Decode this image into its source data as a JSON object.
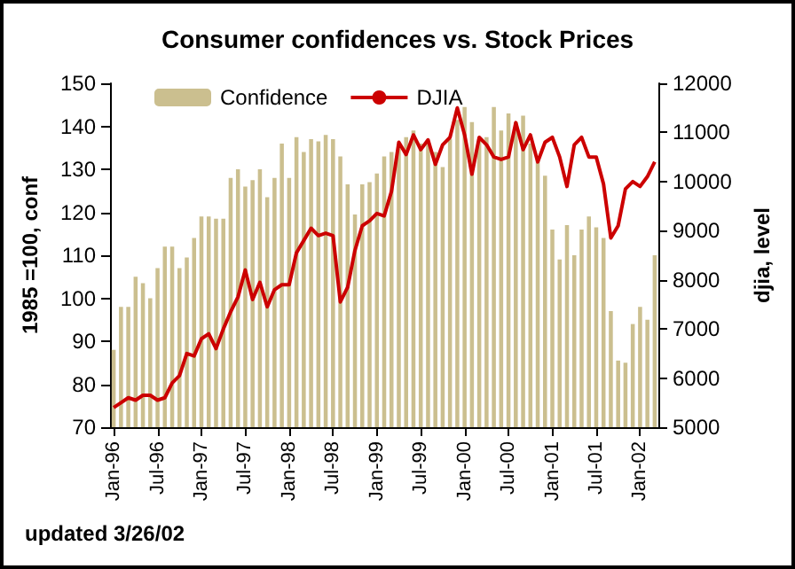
{
  "chart_data": {
    "type": "bar",
    "title": "Consumer confidences vs. Stock Prices",
    "ylabel": "1985 =100, conf",
    "y2label": "djia, level",
    "annotations": [
      "updated 3/26/02"
    ],
    "categories": [
      "Jan-96",
      null,
      null,
      null,
      null,
      null,
      "Jul-96",
      null,
      null,
      null,
      null,
      null,
      "Jan-97",
      null,
      null,
      null,
      null,
      null,
      "Jul-97",
      null,
      null,
      null,
      null,
      null,
      "Jan-98",
      null,
      null,
      null,
      null,
      null,
      "Jul-98",
      null,
      null,
      null,
      null,
      null,
      "Jan-99",
      null,
      null,
      null,
      null,
      null,
      "Jul-99",
      null,
      null,
      null,
      null,
      null,
      "Jan-00",
      null,
      null,
      null,
      null,
      null,
      "Jul-00",
      null,
      null,
      null,
      null,
      null,
      "Jan-01",
      null,
      null,
      null,
      null,
      null,
      "Jul-01",
      null,
      null,
      null,
      null,
      null,
      "Jan-02",
      null,
      null
    ],
    "series": [
      {
        "name": "Confidence",
        "color": "#cbbf8f",
        "values": [
          88,
          98,
          98,
          105,
          103.5,
          100,
          107,
          112,
          112,
          107,
          109.5,
          114,
          119,
          119,
          118.5,
          118.5,
          128,
          130,
          126,
          127.5,
          130,
          123.5,
          128,
          136,
          128,
          137.5,
          134,
          137,
          136.5,
          138,
          137,
          133,
          126.5,
          119.5,
          126.5,
          127,
          129,
          133,
          134,
          135.5,
          137.5,
          139,
          136,
          136,
          134,
          130.5,
          137,
          141.5,
          144.5,
          141,
          137,
          137.5,
          144.5,
          139,
          143,
          141,
          142.5,
          136,
          132.5,
          128.5,
          116,
          109,
          117,
          110,
          116,
          119,
          116.5,
          114,
          97,
          85.5,
          85,
          94,
          98,
          95,
          110
        ]
      },
      {
        "name": "DJIA",
        "type": "line",
        "axis": "y2",
        "color": "#cc0000",
        "values": [
          5400,
          5500,
          5600,
          5550,
          5650,
          5650,
          5550,
          5600,
          5900,
          6050,
          6500,
          6450,
          6800,
          6900,
          6600,
          7000,
          7350,
          7650,
          8200,
          7600,
          7950,
          7450,
          7800,
          7900,
          7900,
          8550,
          8800,
          9050,
          8900,
          8950,
          8900,
          7550,
          7850,
          8600,
          9100,
          9200,
          9350,
          9300,
          9800,
          10800,
          10550,
          10950,
          10650,
          10850,
          10350,
          10750,
          10900,
          11500,
          10950,
          10150,
          10900,
          10750,
          10500,
          10450,
          10500,
          11200,
          10650,
          10950,
          10400,
          10800,
          10900,
          10500,
          9900,
          10750,
          10900,
          10500,
          10500,
          9950,
          8850,
          9100,
          9850,
          10000,
          9900,
          10100,
          10400
        ]
      }
    ],
    "ylim": [
      70,
      150
    ],
    "yticks": [
      70,
      80,
      90,
      100,
      110,
      120,
      130,
      140,
      150
    ],
    "y2lim": [
      5000,
      12000
    ],
    "y2ticks": [
      5000,
      6000,
      7000,
      8000,
      9000,
      10000,
      11000,
      12000
    ],
    "grid": false,
    "legend": "top",
    "marker": "none",
    "line_style": "solid"
  }
}
